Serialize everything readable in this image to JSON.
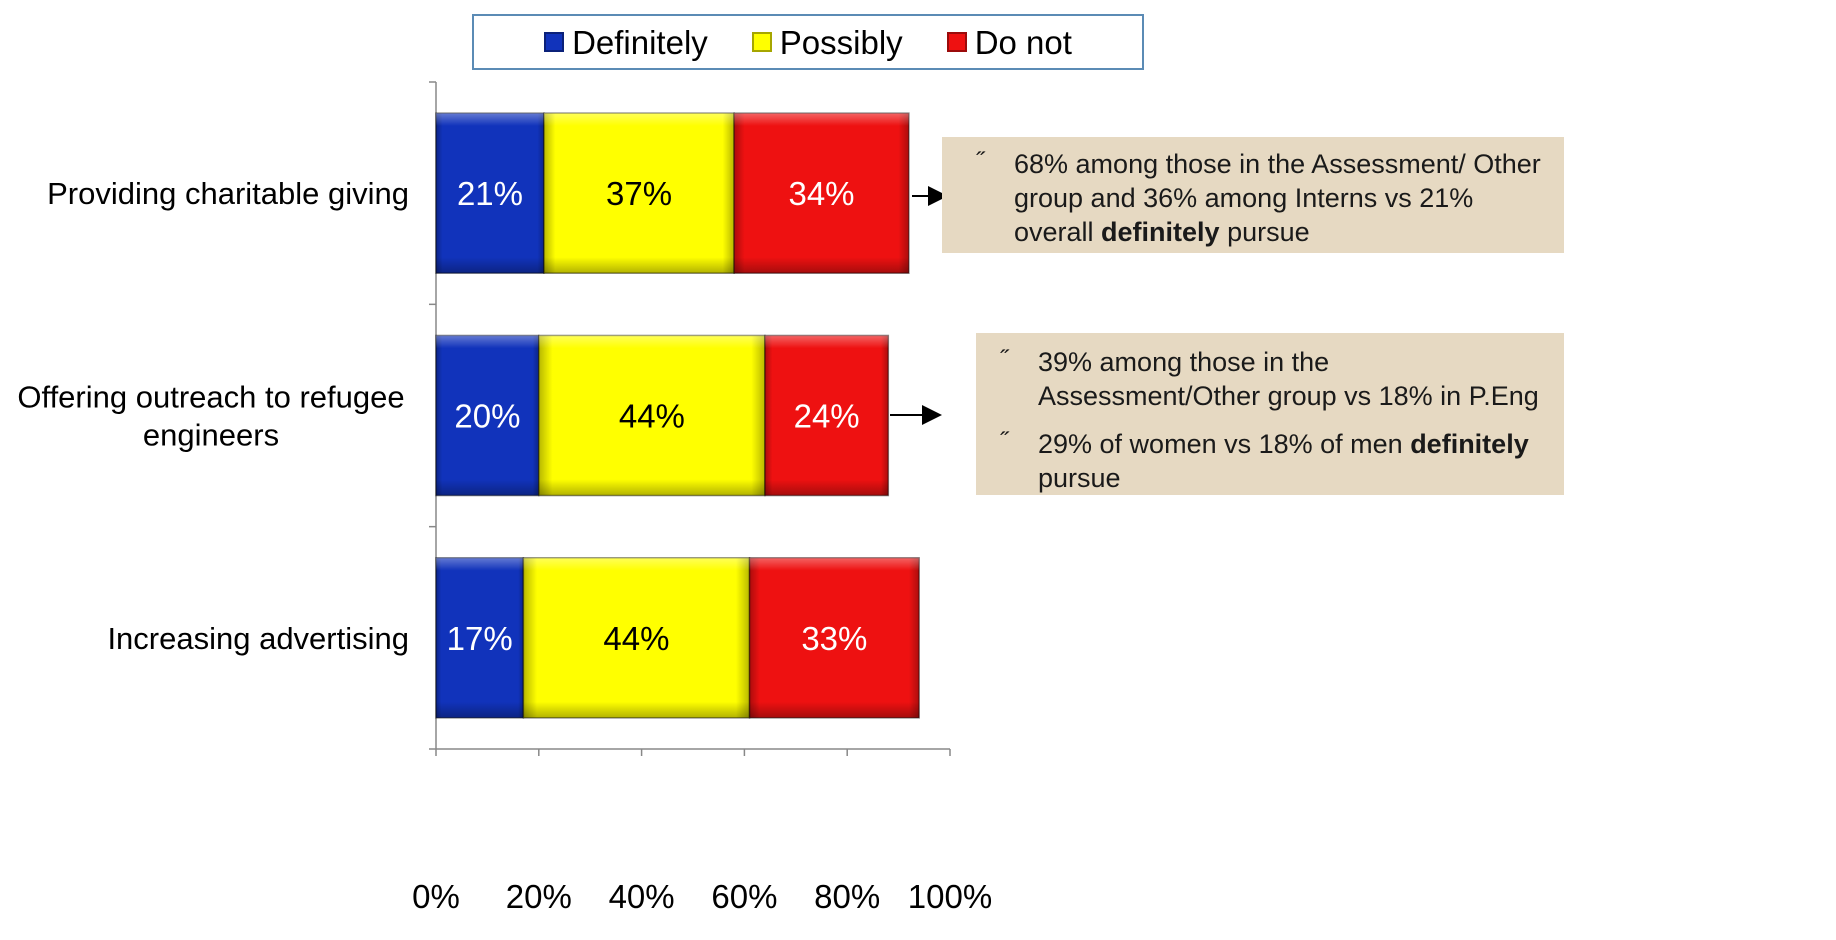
{
  "chart_data": {
    "type": "bar",
    "orientation": "horizontal",
    "stacked": true,
    "categories": [
      "Providing charitable giving",
      "Offering outreach to refugee engineers",
      "Increasing advertising"
    ],
    "category_lines": [
      [
        "Providing charitable giving"
      ],
      [
        "Offering outreach to refugee",
        "engineers"
      ],
      [
        "Increasing advertising"
      ]
    ],
    "series": [
      {
        "name": "Definitely",
        "values": [
          21,
          20,
          17
        ],
        "color": "#1133bb",
        "label_color": "#ffffff"
      },
      {
        "name": "Possibly",
        "values": [
          37,
          44,
          44
        ],
        "color": "#ffff00",
        "label_color": "#000000"
      },
      {
        "name": "Do not",
        "values": [
          34,
          24,
          33
        ],
        "color": "#ee1111",
        "label_color": "#ffffff"
      }
    ],
    "data_labels": [
      [
        "21%",
        "37%",
        "34%"
      ],
      [
        "20%",
        "44%",
        "24%"
      ],
      [
        "17%",
        "44%",
        "33%"
      ]
    ],
    "xlim": [
      0,
      100
    ],
    "xticks": [
      0,
      20,
      40,
      60,
      80,
      100
    ],
    "xtick_labels": [
      "0%",
      "20%",
      "40%",
      "60%",
      "80%",
      "100%"
    ],
    "legend_position": "top",
    "grid": false
  },
  "annotations": [
    {
      "bullet_mark": "˝",
      "bullets": [
        {
          "pre": "68% among those in the Assessment/ Other group and 36% among Interns vs 21% overall ",
          "bold": "definitely",
          "post": " pursue"
        }
      ]
    },
    {
      "bullet_mark": "˝",
      "bullets": [
        {
          "pre": "39% among those in the Assessment/Other group vs 18% in P.Eng",
          "bold": "",
          "post": ""
        },
        {
          "pre": "29% of women vs 18% of men ",
          "bold": "definitely",
          "post": " pursue"
        }
      ]
    }
  ]
}
